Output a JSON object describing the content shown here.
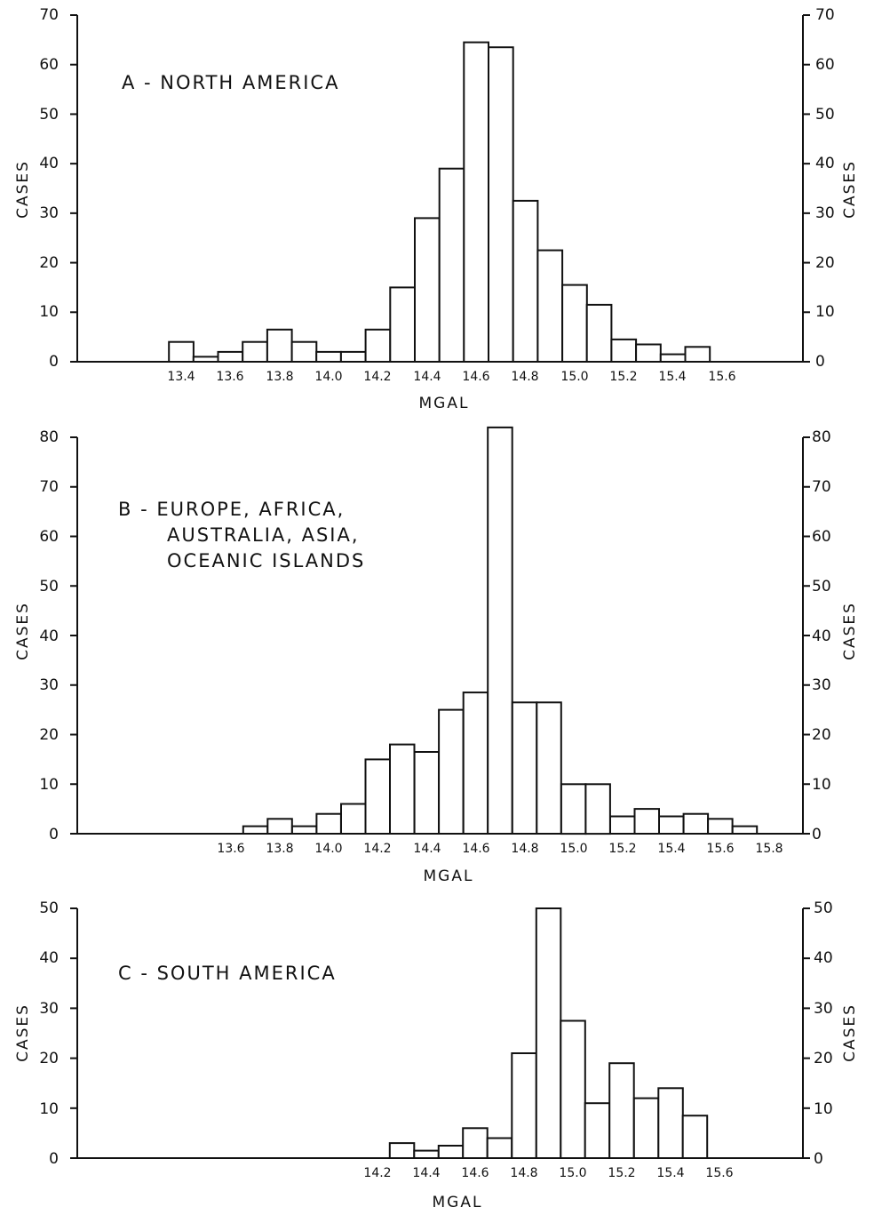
{
  "chart_data": [
    {
      "type": "bar",
      "title_lines": [
        "A - NORTH AMERICA"
      ],
      "xlabel": "MGAL",
      "ylabel": "CASES",
      "ylabel_right": "CASES",
      "ylim": [
        0,
        70
      ],
      "yticks": [
        0,
        10,
        20,
        30,
        40,
        50,
        60,
        70
      ],
      "ytick_labels_right": [
        "0",
        "10",
        "20",
        "30",
        "40",
        "50",
        "60",
        "70"
      ],
      "bin_width": 0.1,
      "x_tick_labels": [
        "13.4",
        "13.6",
        "13.8",
        "14.0",
        "14.2",
        "14.4",
        "14.6",
        "14.8",
        "15.0",
        "15.2",
        "15.4",
        "15.6"
      ],
      "bins": [
        {
          "x": 13.4,
          "value": 4
        },
        {
          "x": 13.5,
          "value": 1
        },
        {
          "x": 13.6,
          "value": 2
        },
        {
          "x": 13.7,
          "value": 4
        },
        {
          "x": 13.8,
          "value": 6.5
        },
        {
          "x": 13.9,
          "value": 4
        },
        {
          "x": 14.0,
          "value": 2
        },
        {
          "x": 14.1,
          "value": 2
        },
        {
          "x": 14.2,
          "value": 6.5
        },
        {
          "x": 14.3,
          "value": 15
        },
        {
          "x": 14.4,
          "value": 29
        },
        {
          "x": 14.5,
          "value": 39
        },
        {
          "x": 14.6,
          "value": 64.5
        },
        {
          "x": 14.7,
          "value": 63.5
        },
        {
          "x": 14.8,
          "value": 32.5
        },
        {
          "x": 14.9,
          "value": 22.5
        },
        {
          "x": 15.0,
          "value": 15.5
        },
        {
          "x": 15.1,
          "value": 11.5
        },
        {
          "x": 15.2,
          "value": 4.5
        },
        {
          "x": 15.3,
          "value": 3.5
        },
        {
          "x": 15.4,
          "value": 1.5
        },
        {
          "x": 15.5,
          "value": 3
        }
      ]
    },
    {
      "type": "bar",
      "title_lines": [
        "B - EUROPE, AFRICA,",
        "AUSTRALIA, ASIA,",
        "OCEANIC ISLANDS"
      ],
      "xlabel": "MGAL",
      "ylabel": "CASES",
      "ylabel_right": "CASES",
      "ylim": [
        0,
        80
      ],
      "yticks": [
        0,
        10,
        20,
        30,
        40,
        50,
        60,
        70,
        80
      ],
      "ytick_labels_right": [
        "0",
        "10",
        "20",
        "30",
        "40",
        "50",
        "60",
        "70",
        "80"
      ],
      "bin_width": 0.1,
      "x_tick_labels": [
        "13.6",
        "13.8",
        "14.0",
        "14.2",
        "14.4",
        "14.6",
        "14.8",
        "15.0",
        "15.2",
        "15.4",
        "15.6",
        "15.8"
      ],
      "bins": [
        {
          "x": 13.7,
          "value": 1.5
        },
        {
          "x": 13.8,
          "value": 3
        },
        {
          "x": 13.9,
          "value": 1.5
        },
        {
          "x": 14.0,
          "value": 4
        },
        {
          "x": 14.1,
          "value": 6
        },
        {
          "x": 14.2,
          "value": 15
        },
        {
          "x": 14.3,
          "value": 18
        },
        {
          "x": 14.4,
          "value": 16.5
        },
        {
          "x": 14.5,
          "value": 25
        },
        {
          "x": 14.6,
          "value": 28.5
        },
        {
          "x": 14.7,
          "value": 82
        },
        {
          "x": 14.8,
          "value": 26.5
        },
        {
          "x": 14.9,
          "value": 26.5
        },
        {
          "x": 15.0,
          "value": 10
        },
        {
          "x": 15.1,
          "value": 10
        },
        {
          "x": 15.2,
          "value": 3.5
        },
        {
          "x": 15.3,
          "value": 5
        },
        {
          "x": 15.4,
          "value": 3.5
        },
        {
          "x": 15.5,
          "value": 4
        },
        {
          "x": 15.6,
          "value": 3
        },
        {
          "x": 15.7,
          "value": 1.5
        }
      ]
    },
    {
      "type": "bar",
      "title_lines": [
        "C - SOUTH AMERICA"
      ],
      "xlabel": "MGAL",
      "ylabel": "CASES",
      "ylabel_right": "CASES",
      "ylim": [
        0,
        50
      ],
      "yticks": [
        0,
        10,
        20,
        30,
        40,
        50
      ],
      "ytick_labels_right": [
        "0",
        "10",
        "20",
        "30",
        "40",
        "50"
      ],
      "bin_width": 0.1,
      "x_tick_labels": [
        "14.2",
        "14.4",
        "14.6",
        "14.8",
        "15.0",
        "15.2",
        "15.4",
        "15.6"
      ],
      "bins": [
        {
          "x": 14.3,
          "value": 3
        },
        {
          "x": 14.4,
          "value": 1.5
        },
        {
          "x": 14.5,
          "value": 2.5
        },
        {
          "x": 14.6,
          "value": 6
        },
        {
          "x": 14.7,
          "value": 4
        },
        {
          "x": 14.8,
          "value": 21
        },
        {
          "x": 14.9,
          "value": 50
        },
        {
          "x": 15.0,
          "value": 27.5
        },
        {
          "x": 15.1,
          "value": 11
        },
        {
          "x": 15.2,
          "value": 19
        },
        {
          "x": 15.3,
          "value": 12
        },
        {
          "x": 15.4,
          "value": 14
        },
        {
          "x": 15.5,
          "value": 8.5
        }
      ]
    }
  ]
}
